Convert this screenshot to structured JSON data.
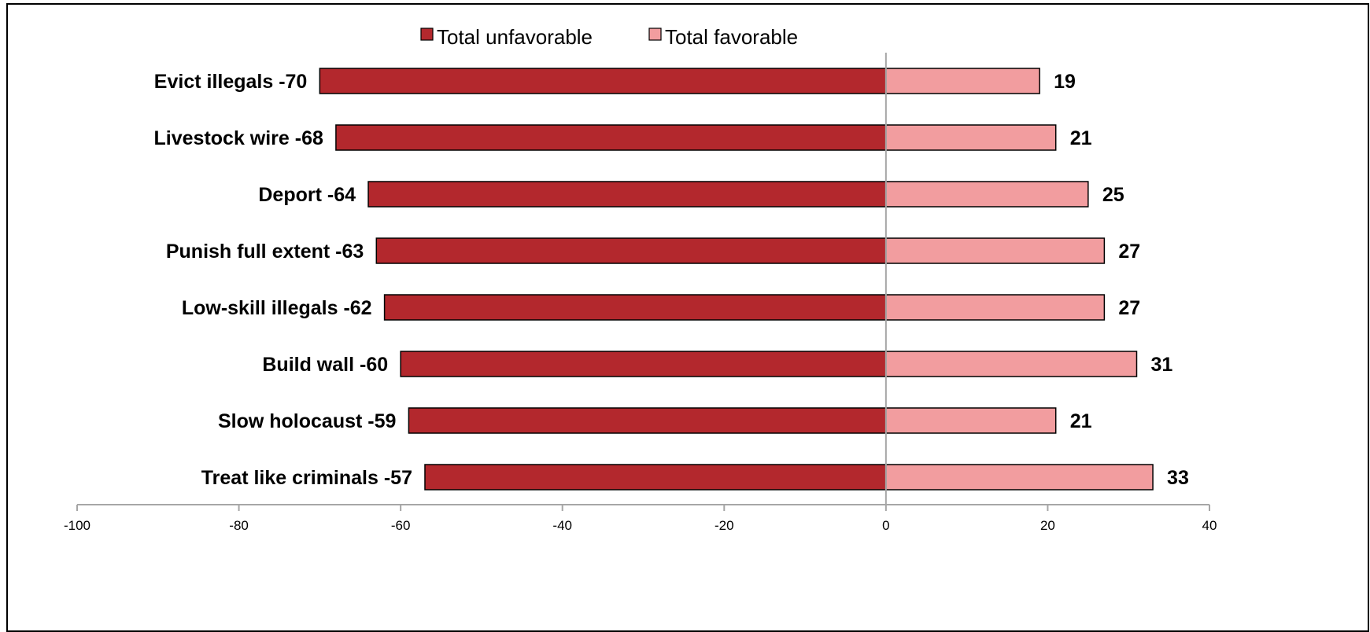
{
  "chart_data": {
    "type": "bar",
    "orientation": "horizontal",
    "categories": [
      "Evict illegals -70",
      "Livestock wire -68",
      "Deport -64",
      "Punish full extent -63",
      "Low-skill illegals -62",
      "Build wall -60",
      "Slow holocaust -59",
      "Treat like criminals -57"
    ],
    "series": [
      {
        "name": "Total unfavorable",
        "values": [
          -70,
          -68,
          -64,
          -63,
          -62,
          -60,
          -59,
          -57
        ],
        "color": "#b3282d"
      },
      {
        "name": "Total favorable",
        "values": [
          19,
          21,
          25,
          27,
          27,
          31,
          21,
          33
        ],
        "color": "#f29d9f"
      }
    ],
    "favorable_labels": [
      "19",
      "21",
      "25",
      "27",
      "27",
      "31",
      "21",
      "33"
    ],
    "xlim": [
      -100,
      40
    ],
    "x_ticks": [
      -100,
      -80,
      -60,
      -40,
      -20,
      0,
      20,
      40
    ],
    "x_tick_labels": [
      "-100",
      "-80",
      "-60",
      "-40",
      "-20",
      "0",
      "20",
      "40"
    ],
    "legend_position": "top-center",
    "grid": false
  }
}
